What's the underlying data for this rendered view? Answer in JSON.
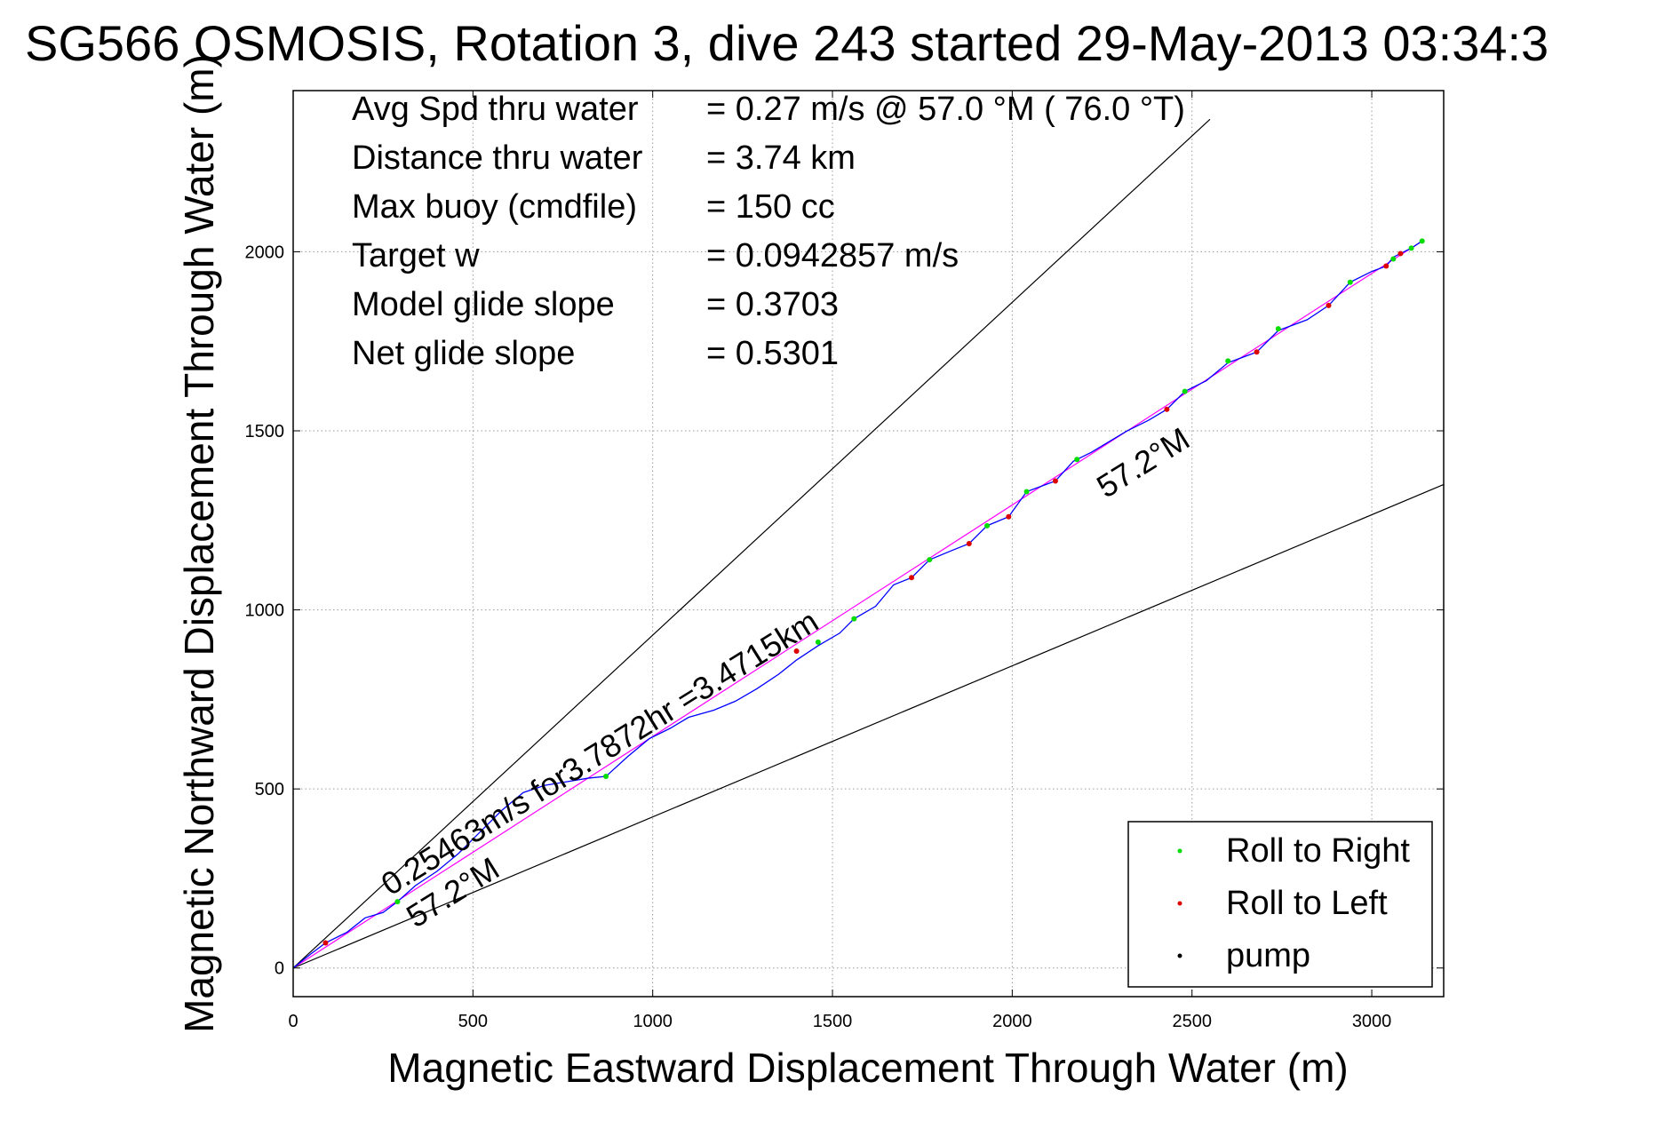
{
  "chart_data": {
    "type": "line",
    "title": "SG566 OSMOSIS, Rotation 3, dive 243 started 29-May-2013 03:34:3",
    "xlabel": "Magnetic Eastward Displacement Through Water (m)",
    "ylabel": "Magnetic Northward Displacement Through Water (m)",
    "xlim": [
      0,
      3200
    ],
    "ylim": [
      -80,
      2450
    ],
    "xticks": [
      0,
      500,
      1000,
      1500,
      2000,
      2500,
      3000
    ],
    "yticks": [
      0,
      500,
      1000,
      1500,
      2000
    ],
    "xtick_labels": [
      "0",
      "500",
      "1000",
      "1500",
      "2000",
      "2500",
      "3000"
    ],
    "ytick_labels": [
      "0",
      "500",
      "1000",
      "1500",
      "2000"
    ],
    "grid": true,
    "info_rows": [
      {
        "label": "Avg Spd thru water",
        "value": "=  0.27 m/s @  57.0 °M ( 76.0 °T)"
      },
      {
        "label": "Distance thru water",
        "value": "=  3.74 km"
      },
      {
        "label": "Max buoy (cmdfile)",
        "value": "= 150 cc"
      },
      {
        "label": "Target w",
        "value": "= 0.0942857 m/s"
      },
      {
        "label": "Model glide slope",
        "value": "= 0.3703"
      },
      {
        "label": "Net glide slope",
        "value": "= 0.5301"
      }
    ],
    "reference_lines": [
      {
        "name": "upper-bound",
        "x": [
          0,
          2550
        ],
        "y": [
          0,
          2370
        ]
      },
      {
        "name": "lower-bound",
        "x": [
          0,
          3200
        ],
        "y": [
          0,
          1350
        ]
      },
      {
        "name": "net-track",
        "x": [
          0,
          3140
        ],
        "y": [
          0,
          2030
        ]
      }
    ],
    "annotations": [
      {
        "text": "0.25463m/s for3.7872hr =3.4715km",
        "x": 270,
        "y": 200,
        "angle": 32
      },
      {
        "text": "57.2°M",
        "x": 340,
        "y": 110,
        "angle": 32
      },
      {
        "text": "57.2°M",
        "x": 2260,
        "y": 1310,
        "angle": 32
      }
    ],
    "series": [
      {
        "name": "track",
        "color": "#0000ff",
        "x": [
          0,
          50,
          90,
          150,
          200,
          250,
          290,
          340,
          400,
          460,
          520,
          580,
          640,
          700,
          760,
          820,
          870,
          930,
          990,
          1050,
          1100,
          1170,
          1230,
          1290,
          1350,
          1400,
          1460,
          1520,
          1560,
          1620,
          1670,
          1720,
          1770,
          1830,
          1880,
          1930,
          1990,
          2040,
          2080,
          2120,
          2170,
          2220,
          2270,
          2320,
          2380,
          2430,
          2480,
          2540,
          2600,
          2680,
          2740,
          2820,
          2880,
          2940,
          3000,
          3040,
          3060,
          3080,
          3110,
          3140
        ],
        "y": [
          0,
          40,
          70,
          100,
          140,
          155,
          185,
          230,
          270,
          320,
          380,
          440,
          490,
          510,
          520,
          530,
          535,
          590,
          640,
          670,
          700,
          720,
          745,
          780,
          820,
          860,
          900,
          935,
          975,
          1010,
          1070,
          1090,
          1140,
          1165,
          1185,
          1235,
          1260,
          1330,
          1345,
          1360,
          1415,
          1440,
          1470,
          1500,
          1530,
          1560,
          1610,
          1640,
          1690,
          1720,
          1780,
          1810,
          1850,
          1915,
          1945,
          1960,
          1985,
          1995,
          2010,
          2030
        ]
      },
      {
        "name": "Roll to Right",
        "color": "#00dd00",
        "x": [
          290,
          870,
          1460,
          1560,
          1770,
          1930,
          2040,
          2180,
          2480,
          2600,
          2740,
          2940,
          3060,
          3110,
          3140
        ],
        "y": [
          185,
          535,
          910,
          975,
          1140,
          1235,
          1330,
          1420,
          1610,
          1695,
          1785,
          1915,
          1980,
          2010,
          2030
        ]
      },
      {
        "name": "Roll to Left",
        "color": "#dd0000",
        "x": [
          90,
          1400,
          1720,
          1880,
          1990,
          2120,
          2430,
          2680,
          2880,
          3040,
          3080
        ],
        "y": [
          70,
          885,
          1090,
          1185,
          1260,
          1360,
          1560,
          1720,
          1850,
          1960,
          1995
        ]
      },
      {
        "name": "pump",
        "color": "#000000",
        "x": [],
        "y": []
      }
    ],
    "legend": {
      "position": "bottom-right",
      "entries": [
        {
          "label": "Roll to Right",
          "color": "#00dd00"
        },
        {
          "label": "Roll to Left",
          "color": "#dd0000"
        },
        {
          "label": "pump",
          "color": "#000000"
        }
      ]
    }
  }
}
